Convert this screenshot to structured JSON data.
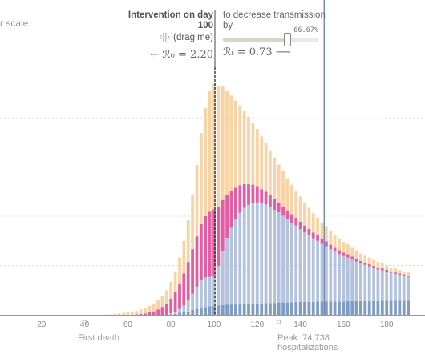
{
  "header": {
    "scale_toggle": "r scale",
    "intervention_title": "Intervention on day",
    "intervention_day": "100",
    "drag_hint": "(drag me)",
    "drag_handle_glyph": "‹||›",
    "r0_text": "← ℛ₀ = 2.20",
    "transmission_label": "to decrease transmission by",
    "slider_pct": "66.67%",
    "slider_value": 0.6667,
    "rt_text": "ℛₜ = 0.73 ⟶"
  },
  "annotations": {
    "first_death": "First death",
    "peak_line1": "Peak: 74,738",
    "peak_line2": "hospitalizations"
  },
  "colors": {
    "infected": "#f8d3a6",
    "hospitalized": "#e45ca1",
    "recovered": "#b4c2de",
    "dead": "#7f9cc4",
    "highlight_infected": "#f2ac63",
    "highlight_hospitalized": "#b5185d",
    "highlight_recovered": "#7c93c0",
    "highlight_dead": "#3e6aa3",
    "grid": "#dddddd",
    "axis_text": "#888888"
  },
  "chart_data": {
    "type": "bar",
    "stacked": true,
    "x_ticks": [
      20,
      40,
      60,
      80,
      100,
      120,
      140,
      160,
      180
    ],
    "xlim": [
      0,
      190
    ],
    "ylim": [
      0,
      5.25
    ],
    "grid": true,
    "intervention_day": 100,
    "highlight_day": 151,
    "series": [
      {
        "key": "dead",
        "days": [
          50,
          52,
          54,
          56,
          58,
          60,
          62,
          64,
          66,
          68,
          70,
          72,
          74,
          76,
          78,
          80,
          82,
          84,
          86,
          88,
          90,
          92,
          94,
          96,
          98,
          100,
          102,
          104,
          106,
          108,
          110,
          112,
          114,
          116,
          118,
          120,
          122,
          124,
          126,
          128,
          130,
          132,
          134,
          136,
          138,
          140,
          142,
          144,
          146,
          148,
          150,
          152,
          154,
          156,
          158,
          160,
          162,
          164,
          166,
          168,
          170,
          172,
          174,
          176,
          178,
          180,
          182,
          184,
          186,
          188,
          190
        ],
        "values": [
          0,
          0,
          0,
          0,
          0,
          0,
          0,
          0,
          0,
          0,
          0,
          0,
          0,
          0,
          0,
          0.01,
          0.02,
          0.04,
          0.05,
          0.07,
          0.1,
          0.12,
          0.14,
          0.16,
          0.17,
          0.18,
          0.19,
          0.2,
          0.21,
          0.21,
          0.21,
          0.22,
          0.22,
          0.22,
          0.23,
          0.23,
          0.23,
          0.24,
          0.24,
          0.24,
          0.25,
          0.25,
          0.25,
          0.25,
          0.26,
          0.26,
          0.26,
          0.26,
          0.26,
          0.27,
          0.27,
          0.27,
          0.27,
          0.27,
          0.27,
          0.27,
          0.28,
          0.28,
          0.28,
          0.28,
          0.28,
          0.28,
          0.28,
          0.28,
          0.29,
          0.29,
          0.29,
          0.29,
          0.29,
          0.29,
          0.29
        ]
      },
      {
        "key": "recovered",
        "days": [
          50,
          52,
          54,
          56,
          58,
          60,
          62,
          64,
          66,
          68,
          70,
          72,
          74,
          76,
          78,
          80,
          82,
          84,
          86,
          88,
          90,
          92,
          94,
          96,
          98,
          100,
          102,
          104,
          106,
          108,
          110,
          112,
          114,
          116,
          118,
          120,
          122,
          124,
          126,
          128,
          130,
          132,
          134,
          136,
          138,
          140,
          142,
          144,
          146,
          148,
          150,
          152,
          154,
          156,
          158,
          160,
          162,
          164,
          166,
          168,
          170,
          172,
          174,
          176,
          178,
          180,
          182,
          184,
          186,
          188,
          190
        ],
        "values": [
          0,
          0,
          0,
          0,
          0,
          0,
          0,
          0,
          0,
          0,
          0,
          0,
          0,
          0,
          0,
          0.02,
          0.04,
          0.08,
          0.14,
          0.22,
          0.33,
          0.45,
          0.56,
          0.6,
          0.6,
          0.61,
          0.8,
          1.1,
          1.35,
          1.55,
          1.72,
          1.85,
          1.95,
          2.01,
          2.04,
          2.05,
          2.03,
          2.0,
          1.95,
          1.89,
          1.83,
          1.76,
          1.69,
          1.62,
          1.55,
          1.48,
          1.41,
          1.35,
          1.29,
          1.23,
          1.17,
          1.12,
          1.06,
          1.01,
          0.96,
          0.92,
          0.88,
          0.84,
          0.8,
          0.76,
          0.73,
          0.7,
          0.67,
          0.64,
          0.61,
          0.58,
          0.56,
          0.54,
          0.52,
          0.5,
          0.48
        ]
      },
      {
        "key": "hospitalized",
        "days": [
          50,
          52,
          54,
          56,
          58,
          60,
          62,
          64,
          66,
          68,
          70,
          72,
          74,
          76,
          78,
          80,
          82,
          84,
          86,
          88,
          90,
          92,
          94,
          96,
          98,
          100,
          102,
          104,
          106,
          108,
          110,
          112,
          114,
          116,
          118,
          120,
          122,
          124,
          126,
          128,
          130,
          132,
          134,
          136,
          138,
          140,
          142,
          144,
          146,
          148,
          150,
          152,
          154,
          156,
          158,
          160,
          162,
          164,
          166,
          168,
          170,
          172,
          174,
          176,
          178,
          180,
          182,
          184,
          186,
          188,
          190
        ],
        "values": [
          0,
          0,
          0,
          0,
          0,
          0,
          0,
          0.01,
          0.02,
          0.03,
          0.05,
          0.07,
          0.11,
          0.16,
          0.22,
          0.3,
          0.4,
          0.52,
          0.65,
          0.78,
          0.9,
          1.02,
          1.14,
          1.24,
          1.32,
          1.35,
          1.2,
          1.03,
          0.88,
          0.76,
          0.65,
          0.56,
          0.48,
          0.42,
          0.37,
          0.33,
          0.29,
          0.26,
          0.24,
          0.22,
          0.2,
          0.19,
          0.18,
          0.17,
          0.16,
          0.15,
          0.14,
          0.13,
          0.12,
          0.11,
          0.1,
          0.1,
          0.09,
          0.08,
          0.08,
          0.07,
          0.07,
          0.06,
          0.06,
          0.05,
          0.05,
          0.05,
          0.04,
          0.04,
          0.04,
          0.04,
          0.03,
          0.03,
          0.03,
          0.03,
          0.03
        ]
      },
      {
        "key": "infected",
        "days": [
          50,
          52,
          54,
          56,
          58,
          60,
          62,
          64,
          66,
          68,
          70,
          72,
          74,
          76,
          78,
          80,
          82,
          84,
          86,
          88,
          90,
          92,
          94,
          96,
          98,
          100,
          102,
          104,
          106,
          108,
          110,
          112,
          114,
          116,
          118,
          120,
          122,
          124,
          126,
          128,
          130,
          132,
          134,
          136,
          138,
          140,
          142,
          144,
          146,
          148,
          150,
          152,
          154,
          156,
          158,
          160,
          162,
          164,
          166,
          168,
          170,
          172,
          174,
          176,
          178,
          180,
          182,
          184,
          186,
          188,
          190
        ],
        "values": [
          0.01,
          0.01,
          0.02,
          0.03,
          0.04,
          0.05,
          0.06,
          0.07,
          0.09,
          0.11,
          0.13,
          0.16,
          0.19,
          0.23,
          0.28,
          0.34,
          0.42,
          0.52,
          0.66,
          0.85,
          1.1,
          1.45,
          1.85,
          2.2,
          2.45,
          2.55,
          2.45,
          2.3,
          2.1,
          1.93,
          1.77,
          1.62,
          1.49,
          1.37,
          1.26,
          1.16,
          1.07,
          0.98,
          0.91,
          0.84,
          0.77,
          0.71,
          0.65,
          0.6,
          0.55,
          0.51,
          0.47,
          0.43,
          0.39,
          0.36,
          0.33,
          0.31,
          0.28,
          0.26,
          0.24,
          0.22,
          0.2,
          0.18,
          0.17,
          0.15,
          0.14,
          0.13,
          0.12,
          0.11,
          0.1,
          0.09,
          0.08,
          0.08,
          0.07,
          0.06,
          0.06
        ]
      }
    ]
  }
}
